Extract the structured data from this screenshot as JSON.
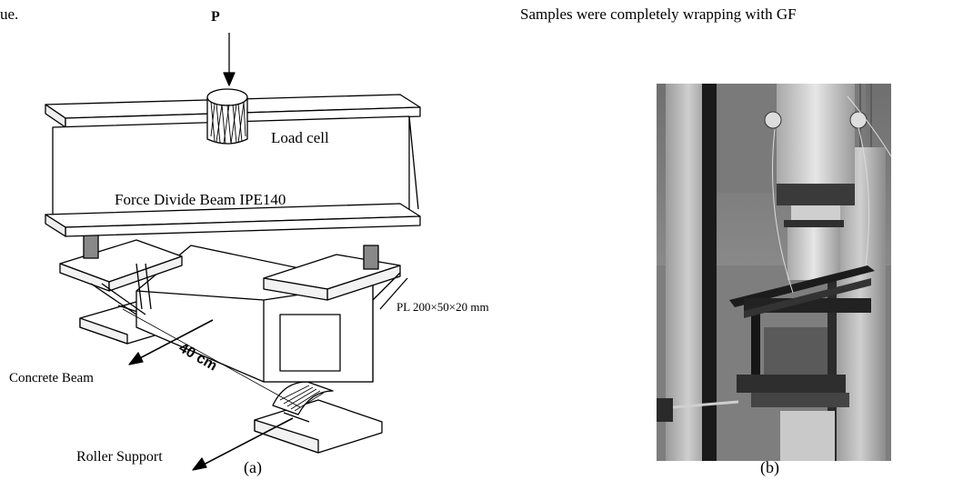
{
  "header": {
    "left_text": "ue.",
    "right_text": "Samples were completely wrapping with GF"
  },
  "diagram": {
    "load_label": "P",
    "load_cell_label": "Load cell",
    "beam_label": "Force Divide Beam IPE140",
    "plate_label": "PL 200×50×20  mm",
    "concrete_beam_label": "Concrete Beam",
    "span_label": "40 cm",
    "roller_label": "Roller Support",
    "caption": "(a)"
  },
  "photo": {
    "caption": "(b)"
  }
}
